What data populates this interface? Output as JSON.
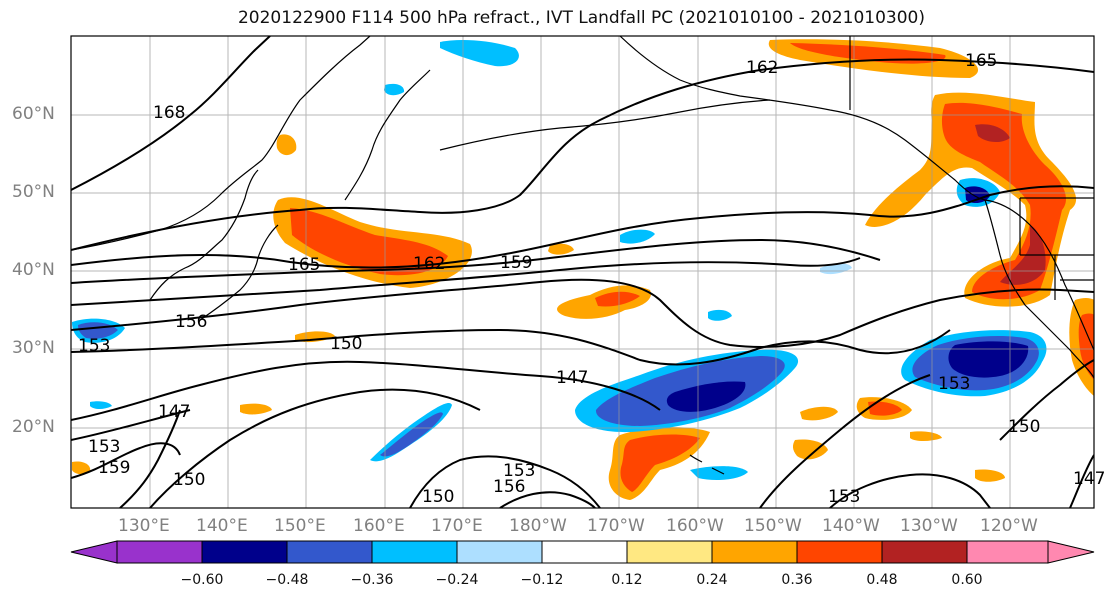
{
  "title": "2020122900 F114 500 hPa refract., IVT Landfall PC (2021010100 - 2021010300)",
  "map": {
    "lat_labels": [
      "60°N",
      "50°N",
      "40°N",
      "30°N",
      "20°N"
    ],
    "lon_labels": [
      "130°E",
      "140°E",
      "150°E",
      "160°E",
      "170°E",
      "180°W",
      "170°W",
      "160°W",
      "150°W",
      "140°W",
      "130°W",
      "120°W"
    ],
    "contour_labels": [
      "168",
      "162",
      "165",
      "165",
      "162",
      "159",
      "156",
      "153",
      "150",
      "147",
      "153",
      "150",
      "147",
      "153",
      "159",
      "150",
      "150",
      "153",
      "156",
      "153",
      "147"
    ],
    "grid": "on"
  },
  "colorbar": {
    "tick_labels": [
      "−0.60",
      "−0.48",
      "−0.36",
      "−0.24",
      "−0.12",
      "0.12",
      "0.24",
      "0.36",
      "0.48",
      "0.60"
    ],
    "colors": {
      "lt_minus_0_60": "#9932CC",
      "minus_0_60_to_minus_0_48": "#00008B",
      "minus_0_48_to_minus_0_36": "#3358CC",
      "minus_0_36_to_minus_0_24": "#00BFFF",
      "minus_0_24_to_minus_0_12": "#ADDFFF",
      "minus_0_12_to_0_12": "#FFFFFF",
      "0_12_to_0_24": "#FFE882",
      "0_24_to_0_36": "#FFA500",
      "0_36_to_0_48": "#FF4500",
      "0_48_to_0_60": "#B22222",
      "gt_0_60": "#FF88B0"
    }
  }
}
